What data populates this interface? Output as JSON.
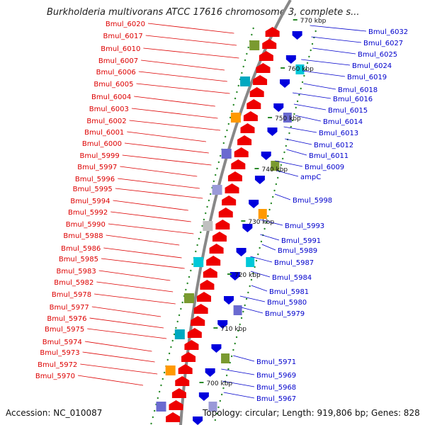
{
  "title": "Burkholderia multivorans ATCC 17616 chromosome 3, complete s...",
  "accession": "Accession: NC_010087",
  "summary": "Topology: circular; Length: 919,806 bp; Genes: 828",
  "colors": {
    "left_labels": "#dd0000",
    "right_labels": "#0000cc",
    "backbone": "#888888",
    "tick_marks": "#2a8a2a",
    "forward_genes": "#ee0000",
    "reverse_genes": "#0000dd"
  },
  "kbp_ticks": [
    "770 kbp",
    "760 kbp",
    "750 kbp",
    "740 kbp",
    "730 kbp",
    "720 kbp",
    "710 kbp",
    "700 kbp"
  ],
  "left_genes": [
    "Bmul_6020",
    "Bmul_6017",
    "Bmul_6010",
    "Bmul_6007",
    "Bmul_6006",
    "Bmul_6005",
    "Bmul_6004",
    "Bmul_6003",
    "Bmul_6002",
    "Bmul_6001",
    "Bmul_6000",
    "Bmul_5999",
    "Bmul_5997",
    "Bmul_5996",
    "Bmul_5995",
    "Bmul_5994",
    "Bmul_5992",
    "Bmul_5990",
    "Bmul_5988",
    "Bmul_5986",
    "Bmul_5985",
    "Bmul_5983",
    "Bmul_5982",
    "Bmul_5978",
    "Bmul_5977",
    "Bmul_5976",
    "Bmul_5975",
    "Bmul_5974",
    "Bmul_5973",
    "Bmul_5972",
    "Bmul_5970"
  ],
  "right_genes": [
    "Bmul_6032",
    "Bmul_6027",
    "Bmul_6025",
    "Bmul_6024",
    "Bmul_6019",
    "Bmul_6018",
    "Bmul_6016",
    "Bmul_6015",
    "Bmul_6014",
    "Bmul_6013",
    "Bmul_6012",
    "Bmul_6011",
    "Bmul_6009",
    "ampC",
    "Bmul_5998",
    "Bmul_5993",
    "Bmul_5991",
    "Bmul_5989",
    "Bmul_5987",
    "Bmul_5984",
    "Bmul_5981",
    "Bmul_5980",
    "Bmul_5979",
    "Bmul_5971",
    "Bmul_5969",
    "Bmul_5968",
    "Bmul_5967"
  ]
}
